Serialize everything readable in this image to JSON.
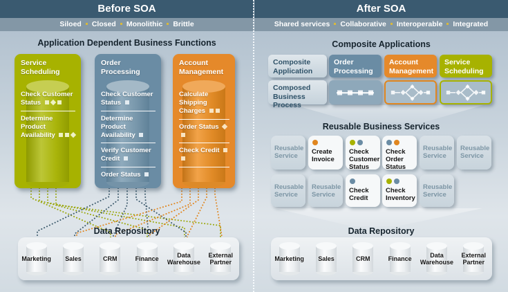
{
  "colors": {
    "green": "#a7b200",
    "blue": "#6a8ca4",
    "orange": "#e0861f",
    "gold_separator": "#d9b93b",
    "header_bg": "#3a5a70",
    "banner_bg": "#8397a6"
  },
  "left": {
    "header": "Before SOA",
    "tagline": [
      "Siloed",
      "Closed",
      "Monolithic",
      "Brittle"
    ],
    "section_title": "Application Dependent Business Functions",
    "apps": [
      {
        "name": "Service Scheduling",
        "theme": "green",
        "items": [
          {
            "label": "Check Customer Status",
            "icons": [
              "sq",
              "di",
              "sq"
            ]
          },
          {
            "label": "Determine Product Availability",
            "icons": [
              "sq",
              "sq",
              "di"
            ]
          }
        ],
        "rules_after": [
          0
        ]
      },
      {
        "name": "Order Processing",
        "theme": "blue",
        "items": [
          {
            "label": "Check Customer Status",
            "icons": [
              "sq"
            ]
          },
          {
            "label": "Determine Product Availability",
            "icons": [
              "sq"
            ]
          },
          {
            "label": "Verify Customer Credit",
            "icons": [
              "sq"
            ]
          },
          {
            "label": "Order Status",
            "icons": [
              "sq"
            ]
          }
        ],
        "rules_after": [
          0,
          1,
          2
        ]
      },
      {
        "name": "Account Management",
        "theme": "orange",
        "items": [
          {
            "label": "Calculate Shipping Charges",
            "icons": [
              "sq",
              "sq"
            ]
          },
          {
            "label": "Order Status",
            "icons": [
              "di",
              "sq"
            ]
          },
          {
            "label": "Check Credit",
            "icons": [
              "sq",
              "sq"
            ]
          }
        ],
        "rules_after": [
          0,
          1,
          2
        ]
      }
    ],
    "repo_title": "Data Repository"
  },
  "right": {
    "header": "After SOA",
    "tagline": [
      "Shared services",
      "Collaborative",
      "Interoperable",
      "Integrated"
    ],
    "section_title": "Composite Applications",
    "composite_row1": [
      {
        "label": "Composite Application",
        "theme": "light"
      },
      {
        "label": "Order Processing",
        "theme": "blue"
      },
      {
        "label": "Account Management",
        "theme": "orange"
      },
      {
        "label": "Service Scheduling",
        "theme": "green"
      }
    ],
    "composite_row2": [
      {
        "label": "Composed Business Process",
        "theme": "light"
      },
      {
        "glyph": "chain",
        "theme": "blue-muted"
      },
      {
        "glyph": "flow",
        "theme": "orange-outline"
      },
      {
        "glyph": "flow",
        "theme": "green-outline"
      }
    ],
    "services_title": "Reusable Business Services",
    "services_row1": [
      {
        "label": "Reusable Service",
        "type": "generic"
      },
      {
        "label": "Create Invoice",
        "type": "named",
        "dots": [
          "orange"
        ]
      },
      {
        "label": "Check Customer Status",
        "type": "named",
        "dots": [
          "green",
          "blue"
        ]
      },
      {
        "label": "Check Order Status",
        "type": "named",
        "dots": [
          "blue",
          "orange"
        ]
      },
      {
        "label": "Reusable Service",
        "type": "generic"
      },
      {
        "label": "Reusable Service",
        "type": "generic"
      }
    ],
    "services_row2": [
      {
        "label": "Reusable Service",
        "type": "generic"
      },
      {
        "label": "Reusable Service",
        "type": "generic"
      },
      {
        "label": "Check Credit",
        "type": "named",
        "dots": [
          "blue"
        ]
      },
      {
        "label": "Check Inventory",
        "type": "named",
        "dots": [
          "green",
          "blue"
        ]
      },
      {
        "label": "Reusable Service",
        "type": "generic"
      }
    ],
    "repo_title": "Data Repository"
  },
  "repositories": [
    "Marketing",
    "Sales",
    "CRM",
    "Finance",
    "Data Warehouse",
    "External Partner"
  ]
}
